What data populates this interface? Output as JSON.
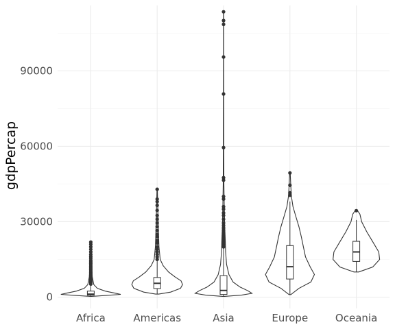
{
  "chart_data": {
    "type": "violin",
    "ylabel": "gdpPercap",
    "xlabel": "",
    "categories": [
      "Africa",
      "Americas",
      "Asia",
      "Europe",
      "Oceania"
    ],
    "ylim": [
      -4500,
      116000
    ],
    "y_ticks": [
      0,
      30000,
      60000,
      90000
    ],
    "y_tick_labels": [
      "0",
      "30000",
      "60000",
      "90000"
    ],
    "grid": true,
    "legend": "none",
    "violins": [
      {
        "name": "Africa",
        "profile": [
          [
            300,
            0.02
          ],
          [
            700,
            0.55
          ],
          [
            1100,
            1.0
          ],
          [
            1600,
            0.8
          ],
          [
            2400,
            0.48
          ],
          [
            3500,
            0.22
          ],
          [
            5000,
            0.1
          ],
          [
            8000,
            0.05
          ],
          [
            12000,
            0.03
          ],
          [
            17000,
            0.015
          ],
          [
            21900,
            0.008
          ]
        ],
        "box": {
          "q1": 750,
          "median": 1190,
          "q3": 2400,
          "whisker_low": 240,
          "whisker_high": 4850
        },
        "outliers": [
          5200,
          5800,
          6300,
          6900,
          7400,
          8000,
          8600,
          9200,
          9800,
          10400,
          11000,
          11600,
          12200,
          12800,
          13400,
          14000,
          14700,
          15500,
          16200,
          17000,
          18000,
          19000,
          20000,
          21000,
          21900
        ]
      },
      {
        "name": "Americas",
        "profile": [
          [
            1200,
            0.05
          ],
          [
            2000,
            0.45
          ],
          [
            3500,
            0.78
          ],
          [
            5000,
            0.85
          ],
          [
            6500,
            0.8
          ],
          [
            8000,
            0.6
          ],
          [
            10000,
            0.38
          ],
          [
            12500,
            0.2
          ],
          [
            15000,
            0.1
          ],
          [
            20000,
            0.06
          ],
          [
            25000,
            0.045
          ],
          [
            30000,
            0.035
          ],
          [
            36000,
            0.02
          ],
          [
            42500,
            0.008
          ]
        ],
        "box": {
          "q1": 3400,
          "median": 5500,
          "q3": 7800,
          "whisker_low": 1200,
          "whisker_high": 14400
        },
        "outliers": [
          15000,
          16000,
          17000,
          18000,
          19000,
          20000,
          21500,
          22500,
          24000,
          25000,
          26500,
          28000,
          29500,
          31000,
          32500,
          34500,
          36500,
          38000,
          39000,
          42900
        ]
      },
      {
        "name": "Asia",
        "profile": [
          [
            300,
            0.03
          ],
          [
            800,
            0.6
          ],
          [
            1500,
            0.95
          ],
          [
            2500,
            0.82
          ],
          [
            4000,
            0.55
          ],
          [
            6000,
            0.32
          ],
          [
            9000,
            0.18
          ],
          [
            13000,
            0.1
          ],
          [
            18000,
            0.07
          ],
          [
            22000,
            0.06
          ],
          [
            28000,
            0.04
          ],
          [
            35000,
            0.025
          ],
          [
            45000,
            0.012
          ],
          [
            60000,
            0.006
          ],
          [
            80000,
            0.004
          ],
          [
            100000,
            0.003
          ],
          [
            113500,
            0.003
          ]
        ],
        "box": {
          "q1": 1060,
          "median": 2650,
          "q3": 8550,
          "whisker_low": 330,
          "whisker_high": 19800
        },
        "outliers": [
          20000,
          20800,
          21500,
          22200,
          23000,
          23800,
          24500,
          25500,
          26500,
          27500,
          28500,
          29500,
          31000,
          32500,
          33500,
          35000,
          36000,
          39000,
          40000,
          46500,
          47500,
          59500,
          80800,
          95500,
          108500,
          110000,
          113500
        ]
      },
      {
        "name": "Europe",
        "profile": [
          [
            1000,
            0.03
          ],
          [
            3500,
            0.3
          ],
          [
            6000,
            0.7
          ],
          [
            9000,
            0.82
          ],
          [
            12000,
            0.68
          ],
          [
            16000,
            0.52
          ],
          [
            20000,
            0.45
          ],
          [
            24000,
            0.38
          ],
          [
            28000,
            0.3
          ],
          [
            32000,
            0.2
          ],
          [
            36000,
            0.1
          ],
          [
            40000,
            0.05
          ],
          [
            44000,
            0.03
          ],
          [
            49400,
            0.01
          ]
        ],
        "box": {
          "q1": 7200,
          "median": 12100,
          "q3": 20500,
          "whisker_low": 970,
          "whisker_high": 38000
        },
        "outliers": [
          40500,
          41500,
          44500,
          49400
        ]
      },
      {
        "name": "Oceania",
        "profile": [
          [
            10000,
            0.08
          ],
          [
            12000,
            0.55
          ],
          [
            15000,
            0.78
          ],
          [
            18000,
            0.75
          ],
          [
            22000,
            0.55
          ],
          [
            26000,
            0.35
          ],
          [
            30000,
            0.18
          ],
          [
            33000,
            0.12
          ],
          [
            34200,
            0.05
          ]
        ],
        "box": {
          "q1": 14200,
          "median": 17980,
          "q3": 22200,
          "whisker_low": 10000,
          "whisker_high": 30700
        },
        "outliers": [
          34400
        ]
      }
    ]
  }
}
